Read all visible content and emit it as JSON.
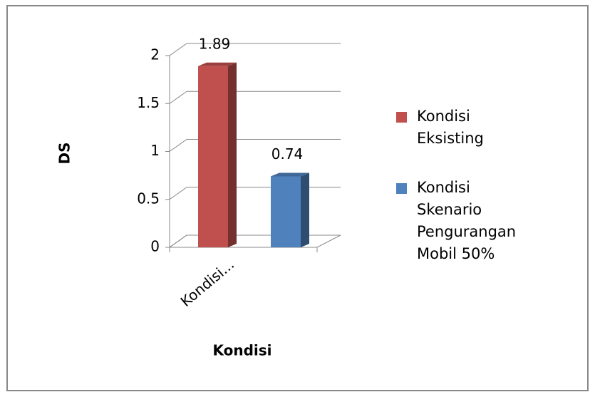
{
  "chart_data": {
    "type": "bar3d",
    "categories": [
      "Kondisi..."
    ],
    "series": [
      {
        "name": "Kondisi Eksisting",
        "color": "#c0504d",
        "values": [
          1.89
        ]
      },
      {
        "name": "Kondisi Skenario Pengurangan Mobil 50%",
        "color": "#4f81bd",
        "values": [
          0.74
        ]
      }
    ],
    "xlabel": "Kondisi",
    "ylabel": "DS",
    "ylim": [
      0,
      2
    ],
    "yticks": [
      0,
      0.5,
      1,
      1.5,
      2
    ],
    "grid": true,
    "legend": "right"
  }
}
